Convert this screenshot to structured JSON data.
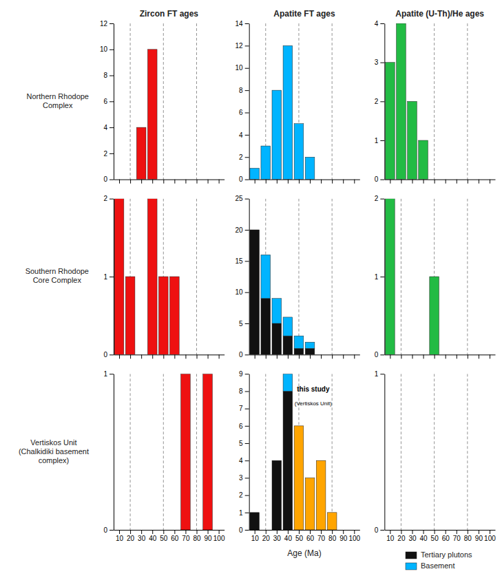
{
  "chart_data": [
    {
      "type": "bar",
      "title": "Zircon FT ages",
      "ylabel": "Northern Rhodope\nComplex",
      "x": [
        10,
        20,
        30,
        40,
        50,
        60,
        70,
        80,
        90,
        100
      ],
      "series": [
        {
          "color": "#ee1111",
          "values": [
            0,
            0,
            4,
            10,
            0,
            0,
            0,
            0,
            0,
            0
          ]
        }
      ],
      "xlim": [
        5,
        105
      ],
      "xticks": [
        10,
        20,
        30,
        40,
        50,
        60,
        70,
        80,
        90,
        100
      ],
      "ylim": [
        0,
        12
      ],
      "yticks": [
        0,
        2,
        4,
        6,
        8,
        10,
        12
      ],
      "vlines": [
        20,
        50,
        80
      ],
      "tick_labels": "y"
    },
    {
      "type": "bar",
      "title": "Apatite FT ages",
      "x": [
        10,
        20,
        30,
        40,
        50,
        60,
        70,
        80,
        90,
        100
      ],
      "series": [
        {
          "color": "#00b4ff",
          "values": [
            1,
            3,
            8,
            12,
            5,
            2,
            0,
            0,
            0,
            0
          ]
        }
      ],
      "xlim": [
        5,
        105
      ],
      "xticks": [
        10,
        20,
        30,
        40,
        50,
        60,
        70,
        80,
        90,
        100
      ],
      "ylim": [
        0,
        14
      ],
      "yticks": [
        0,
        2,
        4,
        6,
        8,
        10,
        12,
        14
      ],
      "vlines": [
        20,
        50,
        80
      ],
      "tick_labels": "y"
    },
    {
      "type": "bar",
      "title": "Apatite (U-Th)/He ages",
      "x": [
        10,
        20,
        30,
        40,
        50,
        60,
        70,
        80,
        90,
        100
      ],
      "series": [
        {
          "color": "#22bb44",
          "values": [
            3,
            4,
            2,
            1,
            0,
            0,
            0,
            0,
            0,
            0
          ]
        }
      ],
      "xlim": [
        5,
        105
      ],
      "xticks": [
        10,
        20,
        30,
        40,
        50,
        60,
        70,
        80,
        90,
        100
      ],
      "ylim": [
        0,
        4
      ],
      "yticks": [
        0,
        1,
        2,
        3,
        4
      ],
      "vlines": [
        20,
        50,
        80
      ],
      "tick_labels": "y"
    },
    {
      "type": "bar",
      "ylabel": "Southern Rhodope\nCore Complex",
      "x": [
        10,
        20,
        30,
        40,
        50,
        60,
        70,
        80,
        90,
        100
      ],
      "series": [
        {
          "color": "#ee1111",
          "values": [
            2,
            1,
            0,
            2,
            1,
            1,
            0,
            0,
            0,
            0
          ]
        }
      ],
      "xlim": [
        5,
        105
      ],
      "xticks": [
        10,
        20,
        30,
        40,
        50,
        60,
        70,
        80,
        90,
        100
      ],
      "ylim": [
        0,
        2
      ],
      "yticks": [
        0,
        1,
        2
      ],
      "vlines": [
        20,
        50,
        80
      ],
      "tick_labels": "y"
    },
    {
      "type": "bar",
      "stacked": true,
      "x": [
        10,
        20,
        30,
        40,
        50,
        60,
        70,
        80,
        90,
        100
      ],
      "series": [
        {
          "color": "#111111",
          "values": [
            20,
            9,
            5,
            3,
            1,
            1,
            0,
            0,
            0,
            0
          ]
        },
        {
          "color": "#00b4ff",
          "values": [
            0,
            7,
            4,
            3,
            2,
            1,
            0,
            0,
            0,
            0
          ]
        }
      ],
      "xlim": [
        5,
        105
      ],
      "xticks": [
        10,
        20,
        30,
        40,
        50,
        60,
        70,
        80,
        90,
        100
      ],
      "ylim": [
        0,
        25
      ],
      "yticks": [
        0,
        5,
        10,
        15,
        20,
        25
      ],
      "vlines": [
        20,
        50,
        80
      ],
      "tick_labels": "y"
    },
    {
      "type": "bar",
      "x": [
        10,
        20,
        30,
        40,
        50,
        60,
        70,
        80,
        90,
        100
      ],
      "series": [
        {
          "color": "#22bb44",
          "values": [
            2,
            0,
            0,
            0,
            1,
            0,
            0,
            0,
            0,
            0
          ]
        }
      ],
      "xlim": [
        5,
        105
      ],
      "xticks": [
        10,
        20,
        30,
        40,
        50,
        60,
        70,
        80,
        90,
        100
      ],
      "ylim": [
        0,
        2
      ],
      "yticks": [
        0,
        1,
        2
      ],
      "vlines": [
        20,
        50,
        80
      ],
      "tick_labels": "y"
    },
    {
      "type": "bar",
      "ylabel": "Vertiskos Unit\n(Chalkidiki basement\ncomplex)",
      "x": [
        10,
        20,
        30,
        40,
        50,
        60,
        70,
        80,
        90,
        100
      ],
      "series": [
        {
          "color": "#ee1111",
          "values": [
            0,
            0,
            0,
            0,
            0,
            0,
            1,
            0,
            1,
            0
          ]
        }
      ],
      "xlim": [
        5,
        105
      ],
      "xticks": [
        10,
        20,
        30,
        40,
        50,
        60,
        70,
        80,
        90,
        100
      ],
      "ylim": [
        0,
        1
      ],
      "yticks": [
        0,
        1
      ],
      "vlines": [
        20,
        50,
        80
      ]
    },
    {
      "type": "bar",
      "stacked": true,
      "xlabel": "Age (Ma)",
      "legend": "lower right",
      "x": [
        10,
        20,
        30,
        40,
        50,
        60,
        70,
        80,
        90,
        100
      ],
      "series": [
        {
          "name": "Tertiary plutons",
          "color": "#111111",
          "values": [
            1,
            0,
            4,
            8,
            0,
            0,
            0,
            0,
            0,
            0
          ]
        },
        {
          "name": "Basement",
          "color": "#00b4ff",
          "values": [
            0,
            0,
            0,
            1,
            0,
            0,
            0,
            0,
            0,
            0
          ]
        },
        {
          "color": "#ffa500",
          "values": [
            0,
            0,
            0,
            0,
            6,
            3,
            4,
            1,
            0,
            0
          ]
        }
      ],
      "annotations": [
        {
          "text": "this study",
          "x": 63,
          "y": 8.0
        },
        {
          "text": "(Vertiskos Unit)",
          "x": 63,
          "y": 7.2
        }
      ],
      "xlim": [
        5,
        105
      ],
      "xticks": [
        10,
        20,
        30,
        40,
        50,
        60,
        70,
        80,
        90,
        100
      ],
      "ylim": [
        0,
        9
      ],
      "yticks": [
        0,
        1,
        2,
        3,
        4,
        5,
        6,
        7,
        8,
        9
      ],
      "vlines": [
        20,
        50,
        80
      ]
    },
    {
      "type": "bar",
      "x": [
        10,
        20,
        30,
        40,
        50,
        60,
        70,
        80,
        90,
        100
      ],
      "series": [
        {
          "color": "#22bb44",
          "values": [
            0,
            0,
            0,
            0,
            0,
            0,
            0,
            0,
            0,
            0
          ]
        }
      ],
      "xlim": [
        5,
        105
      ],
      "xticks": [
        10,
        20,
        30,
        40,
        50,
        60,
        70,
        80,
        90,
        100
      ],
      "ylim": [
        0,
        1
      ],
      "yticks": [
        0,
        1
      ],
      "vlines": [
        20,
        50,
        80
      ]
    }
  ]
}
